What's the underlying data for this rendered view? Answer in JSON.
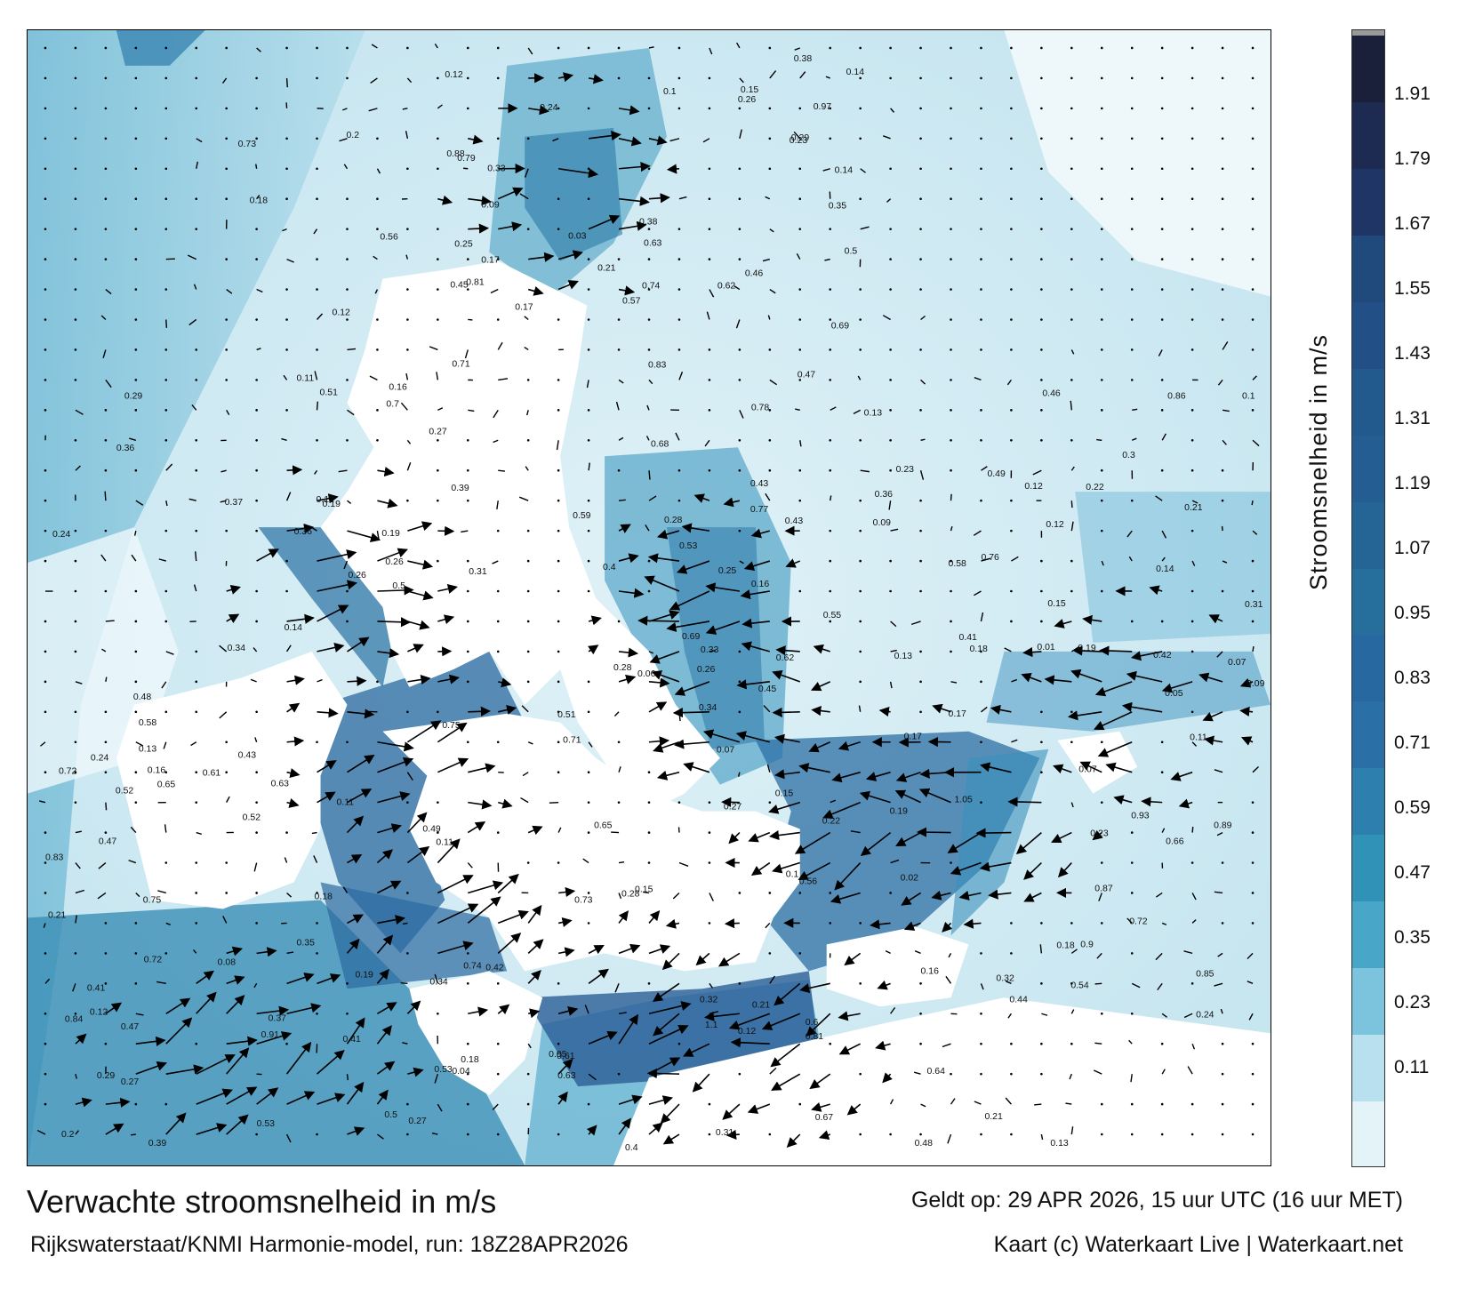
{
  "title": "Verwachte stroomsnelheid in m/s",
  "subtitle": "Rijkswaterstaat/KNMI Harmonie-model, run: 18Z28APR2026",
  "valid_time": "Geldt op: 29 APR 2026, 15 uur UTC (16 uur MET)",
  "credit": "Kaart (c) Waterkaart Live | Waterkaart.net",
  "colorbar": {
    "label": "Stroomsnelheid in m/s",
    "ticks": [
      "1.91",
      "1.79",
      "1.67",
      "1.55",
      "1.43",
      "1.31",
      "1.19",
      "1.07",
      "0.95",
      "0.83",
      "0.71",
      "0.59",
      "0.47",
      "0.35",
      "0.23",
      "0.11"
    ],
    "colors": [
      "#1a1f3a",
      "#1d2a52",
      "#1f3566",
      "#204a7c",
      "#214f86",
      "#235a8e",
      "#245d91",
      "#246595",
      "#266f9c",
      "#2768a0",
      "#2a6fa6",
      "#2d7fae",
      "#3192b8",
      "#48a7c9",
      "#7cc3dd",
      "#b9e0ee",
      "#e4f3f8"
    ],
    "top_cap_color": "#9a9a9a"
  },
  "values": [
    "0.17",
    "0.13",
    "0.1",
    "0.27",
    "0.2",
    "0.12",
    "0.11",
    "0.14",
    "0.24",
    "0.17",
    "0.16",
    "0.23",
    "0.21",
    "0.07",
    "0.13",
    "0.15",
    "0.21",
    "0.22",
    "0.19",
    "0.18",
    "0.1",
    "0.12",
    "0.11",
    "0.19",
    "0.28",
    "0.26",
    "0.16",
    "0.18",
    "0.09",
    "0.15",
    "0.25",
    "0.23",
    "0.27",
    "0.43",
    "0.29",
    "0.46",
    "0.4",
    "0.26",
    "0.49",
    "0.47",
    "0.52",
    "0.44",
    "0.36",
    "0.31",
    "0.24",
    "0.32",
    "0.33",
    "0.21",
    "0.18",
    "0.12",
    "0.58",
    "0.17",
    "0.19",
    "0.14",
    "0.14",
    "0.13",
    "0.13",
    "0.09",
    "0.12",
    "0.11",
    "0.06",
    "0.08",
    "0.07",
    "0.09",
    "0.05",
    "0.01",
    "0.03",
    "0.02",
    "0.04",
    "0.12",
    "0.16",
    "0.17",
    "0.22",
    "0.23",
    "0.28",
    "0.34",
    "0.46",
    "0.43",
    "0.45",
    "0.33",
    "0.56",
    "0.63",
    "0.57",
    "0.52",
    "0.5",
    "0.41",
    "0.34",
    "0.31",
    "0.24",
    "0.26",
    "0.21",
    "0.18",
    "0.19",
    "0.15",
    "0.36",
    "0.27",
    "0.32",
    "0.29",
    "0.16",
    "0.14",
    "0.12",
    "0.38",
    "0.41",
    "0.42",
    "0.47",
    "0.48",
    "0.53",
    "0.58",
    "0.56",
    "0.61",
    "0.63",
    "0.5",
    "0.51",
    "0.48",
    "0.49",
    "0.72",
    "0.7",
    "0.62",
    "0.64",
    "0.66",
    "0.74",
    "0.79",
    "0.84",
    "0.88",
    "0.9",
    "0.93",
    "0.85",
    "0.75",
    "0.72",
    "0.69",
    "0.67",
    "0.83",
    "0.81",
    "0.73",
    "0.65",
    "0.62",
    "0.51",
    "0.6",
    "0.53",
    "0.43",
    "0.41",
    "0.39",
    "0.37",
    "0.34",
    "0.29",
    "0.24",
    "0.35",
    "0.81",
    "0.77",
    "0.75",
    "0.71",
    "0.76",
    "0.78",
    "0.83",
    "0.68",
    "0.53",
    "0.73",
    "0.72",
    "0.63",
    "0.61",
    "0.59",
    "0.5",
    "0.45",
    "0.4",
    "0.42",
    "0.47",
    "0.36",
    "0.38",
    "0.39",
    "0.31",
    "0.35",
    "0.26",
    "0.25",
    "0.28",
    "0.27",
    "0.3",
    "0.1",
    "1.05",
    "1.1",
    "0.89",
    "0.91",
    "0.97",
    "0.87",
    "0.86",
    "0.74",
    "0.69",
    "0.71",
    "0.65",
    "0.55",
    "0.54",
    "0.37",
    "0.21",
    "0.2",
    "0.15",
    "0.18",
    "0.19",
    "0.12",
    "0.11",
    "0.07",
    "0.05"
  ]
}
